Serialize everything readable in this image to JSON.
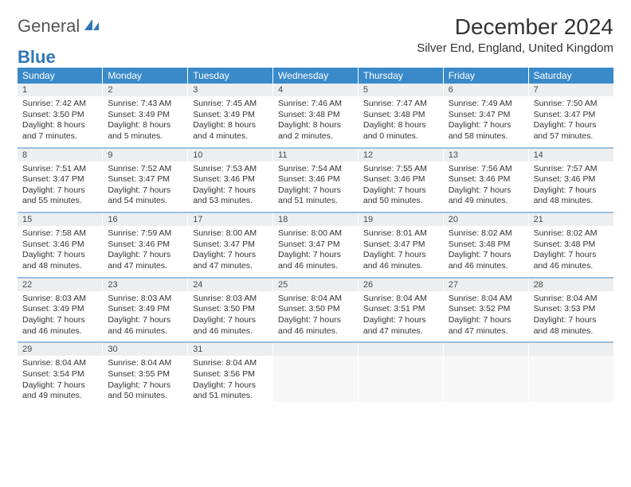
{
  "brand": {
    "word1": "General",
    "word2": "Blue"
  },
  "title": "December 2024",
  "location": "Silver End, England, United Kingdom",
  "colors": {
    "header_bg": "#3a8ac9",
    "header_text": "#ffffff",
    "row_sep": "#9cbfe0",
    "daynum_bg": "#eceeef",
    "logo_blue": "#2f77b6"
  },
  "weekdays": [
    "Sunday",
    "Monday",
    "Tuesday",
    "Wednesday",
    "Thursday",
    "Friday",
    "Saturday"
  ],
  "weeks": [
    [
      {
        "n": "1",
        "sunrise": "Sunrise: 7:42 AM",
        "sunset": "Sunset: 3:50 PM",
        "day": "Daylight: 8 hours and 7 minutes."
      },
      {
        "n": "2",
        "sunrise": "Sunrise: 7:43 AM",
        "sunset": "Sunset: 3:49 PM",
        "day": "Daylight: 8 hours and 5 minutes."
      },
      {
        "n": "3",
        "sunrise": "Sunrise: 7:45 AM",
        "sunset": "Sunset: 3:49 PM",
        "day": "Daylight: 8 hours and 4 minutes."
      },
      {
        "n": "4",
        "sunrise": "Sunrise: 7:46 AM",
        "sunset": "Sunset: 3:48 PM",
        "day": "Daylight: 8 hours and 2 minutes."
      },
      {
        "n": "5",
        "sunrise": "Sunrise: 7:47 AM",
        "sunset": "Sunset: 3:48 PM",
        "day": "Daylight: 8 hours and 0 minutes."
      },
      {
        "n": "6",
        "sunrise": "Sunrise: 7:49 AM",
        "sunset": "Sunset: 3:47 PM",
        "day": "Daylight: 7 hours and 58 minutes."
      },
      {
        "n": "7",
        "sunrise": "Sunrise: 7:50 AM",
        "sunset": "Sunset: 3:47 PM",
        "day": "Daylight: 7 hours and 57 minutes."
      }
    ],
    [
      {
        "n": "8",
        "sunrise": "Sunrise: 7:51 AM",
        "sunset": "Sunset: 3:47 PM",
        "day": "Daylight: 7 hours and 55 minutes."
      },
      {
        "n": "9",
        "sunrise": "Sunrise: 7:52 AM",
        "sunset": "Sunset: 3:47 PM",
        "day": "Daylight: 7 hours and 54 minutes."
      },
      {
        "n": "10",
        "sunrise": "Sunrise: 7:53 AM",
        "sunset": "Sunset: 3:46 PM",
        "day": "Daylight: 7 hours and 53 minutes."
      },
      {
        "n": "11",
        "sunrise": "Sunrise: 7:54 AM",
        "sunset": "Sunset: 3:46 PM",
        "day": "Daylight: 7 hours and 51 minutes."
      },
      {
        "n": "12",
        "sunrise": "Sunrise: 7:55 AM",
        "sunset": "Sunset: 3:46 PM",
        "day": "Daylight: 7 hours and 50 minutes."
      },
      {
        "n": "13",
        "sunrise": "Sunrise: 7:56 AM",
        "sunset": "Sunset: 3:46 PM",
        "day": "Daylight: 7 hours and 49 minutes."
      },
      {
        "n": "14",
        "sunrise": "Sunrise: 7:57 AM",
        "sunset": "Sunset: 3:46 PM",
        "day": "Daylight: 7 hours and 48 minutes."
      }
    ],
    [
      {
        "n": "15",
        "sunrise": "Sunrise: 7:58 AM",
        "sunset": "Sunset: 3:46 PM",
        "day": "Daylight: 7 hours and 48 minutes."
      },
      {
        "n": "16",
        "sunrise": "Sunrise: 7:59 AM",
        "sunset": "Sunset: 3:46 PM",
        "day": "Daylight: 7 hours and 47 minutes."
      },
      {
        "n": "17",
        "sunrise": "Sunrise: 8:00 AM",
        "sunset": "Sunset: 3:47 PM",
        "day": "Daylight: 7 hours and 47 minutes."
      },
      {
        "n": "18",
        "sunrise": "Sunrise: 8:00 AM",
        "sunset": "Sunset: 3:47 PM",
        "day": "Daylight: 7 hours and 46 minutes."
      },
      {
        "n": "19",
        "sunrise": "Sunrise: 8:01 AM",
        "sunset": "Sunset: 3:47 PM",
        "day": "Daylight: 7 hours and 46 minutes."
      },
      {
        "n": "20",
        "sunrise": "Sunrise: 8:02 AM",
        "sunset": "Sunset: 3:48 PM",
        "day": "Daylight: 7 hours and 46 minutes."
      },
      {
        "n": "21",
        "sunrise": "Sunrise: 8:02 AM",
        "sunset": "Sunset: 3:48 PM",
        "day": "Daylight: 7 hours and 46 minutes."
      }
    ],
    [
      {
        "n": "22",
        "sunrise": "Sunrise: 8:03 AM",
        "sunset": "Sunset: 3:49 PM",
        "day": "Daylight: 7 hours and 46 minutes."
      },
      {
        "n": "23",
        "sunrise": "Sunrise: 8:03 AM",
        "sunset": "Sunset: 3:49 PM",
        "day": "Daylight: 7 hours and 46 minutes."
      },
      {
        "n": "24",
        "sunrise": "Sunrise: 8:03 AM",
        "sunset": "Sunset: 3:50 PM",
        "day": "Daylight: 7 hours and 46 minutes."
      },
      {
        "n": "25",
        "sunrise": "Sunrise: 8:04 AM",
        "sunset": "Sunset: 3:50 PM",
        "day": "Daylight: 7 hours and 46 minutes."
      },
      {
        "n": "26",
        "sunrise": "Sunrise: 8:04 AM",
        "sunset": "Sunset: 3:51 PM",
        "day": "Daylight: 7 hours and 47 minutes."
      },
      {
        "n": "27",
        "sunrise": "Sunrise: 8:04 AM",
        "sunset": "Sunset: 3:52 PM",
        "day": "Daylight: 7 hours and 47 minutes."
      },
      {
        "n": "28",
        "sunrise": "Sunrise: 8:04 AM",
        "sunset": "Sunset: 3:53 PM",
        "day": "Daylight: 7 hours and 48 minutes."
      }
    ],
    [
      {
        "n": "29",
        "sunrise": "Sunrise: 8:04 AM",
        "sunset": "Sunset: 3:54 PM",
        "day": "Daylight: 7 hours and 49 minutes."
      },
      {
        "n": "30",
        "sunrise": "Sunrise: 8:04 AM",
        "sunset": "Sunset: 3:55 PM",
        "day": "Daylight: 7 hours and 50 minutes."
      },
      {
        "n": "31",
        "sunrise": "Sunrise: 8:04 AM",
        "sunset": "Sunset: 3:56 PM",
        "day": "Daylight: 7 hours and 51 minutes."
      },
      {
        "empty": true
      },
      {
        "empty": true
      },
      {
        "empty": true
      },
      {
        "empty": true
      }
    ]
  ]
}
